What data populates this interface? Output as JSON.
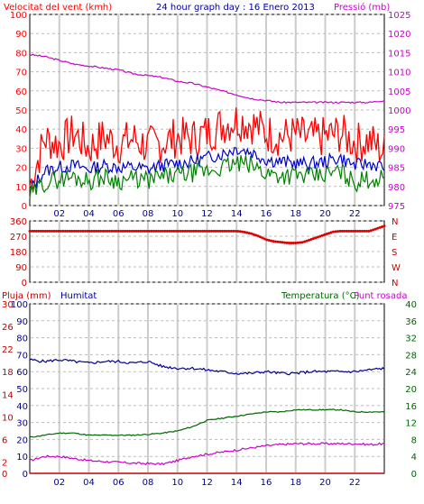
{
  "header": {
    "wind_title": "Velocitat del vent (kmh)",
    "graph_title": "24 hour graph day : 16 Enero 2013",
    "pressure_title": "Pressió (mb)"
  },
  "colors": {
    "wind": "#ff0000",
    "gust": "#ff0000",
    "wind_avg": "#0000cc",
    "wind_low": "#008000",
    "pressure": "#cc00cc",
    "humidity": "#000099",
    "temperature": "#006600",
    "dewpoint": "#cc00cc",
    "rain": "#cc0000",
    "grid_vertical": "#cccccc",
    "grid_horizontal": "#bbbbbb"
  },
  "chart_data": [
    {
      "type": "line",
      "panel": "wind-pressure",
      "title": "24 hour graph day : 16 Enero 2013",
      "xlabel": "",
      "x_ticks": [
        "02",
        "04",
        "06",
        "08",
        "10",
        "12",
        "14",
        "16",
        "18",
        "20",
        "22"
      ],
      "ylabel_left": "Velocitat del vent (kmh)",
      "ylim_left": [
        0,
        100
      ],
      "yticks_left": [
        0,
        10,
        20,
        30,
        40,
        50,
        60,
        70,
        80,
        90,
        100
      ],
      "ylabel_right": "Pressió (mb)",
      "ylim_right": [
        975,
        1025
      ],
      "yticks_right": [
        975,
        980,
        985,
        990,
        995,
        1000,
        1005,
        1010,
        1015,
        1020,
        1025
      ],
      "grid": true,
      "series": [
        {
          "axis": "left",
          "x": [
            0,
            1,
            2,
            3,
            4,
            5,
            6,
            7,
            8,
            9,
            10,
            11,
            12,
            13,
            14,
            15,
            16,
            17,
            18,
            19,
            20,
            21,
            22,
            23,
            24
          ],
          "values": [
            10,
            35,
            32,
            38,
            30,
            36,
            32,
            35,
            31,
            33,
            36,
            35,
            38,
            42,
            45,
            43,
            38,
            36,
            37,
            35,
            36,
            38,
            33,
            34,
            28
          ]
        },
        {
          "axis": "left",
          "x": [
            0,
            1,
            2,
            3,
            4,
            5,
            6,
            7,
            8,
            9,
            10,
            11,
            12,
            13,
            14,
            15,
            16,
            17,
            18,
            19,
            20,
            21,
            22,
            23,
            24
          ],
          "values": [
            8,
            18,
            20,
            21,
            19,
            21,
            20,
            20,
            19,
            21,
            22,
            23,
            25,
            27,
            30,
            28,
            24,
            23,
            22,
            22,
            23,
            25,
            21,
            22,
            20
          ]
        },
        {
          "axis": "left",
          "x": [
            0,
            1,
            2,
            3,
            4,
            5,
            6,
            7,
            8,
            9,
            10,
            11,
            12,
            13,
            14,
            15,
            16,
            17,
            18,
            19,
            20,
            21,
            22,
            23,
            24
          ],
          "values": [
            5,
            12,
            14,
            15,
            13,
            15,
            13,
            14,
            13,
            15,
            16,
            17,
            18,
            20,
            22,
            21,
            17,
            16,
            16,
            15,
            16,
            18,
            12,
            14,
            14
          ]
        },
        {
          "axis": "right",
          "x": [
            0,
            1,
            2,
            3,
            4,
            5,
            6,
            7,
            8,
            9,
            10,
            11,
            12,
            13,
            14,
            15,
            16,
            17,
            18,
            19,
            20,
            21,
            22,
            23,
            24
          ],
          "values": [
            1014.5,
            1014,
            1013,
            1012,
            1011.5,
            1011,
            1010.5,
            1009.5,
            1009,
            1008.5,
            1007.5,
            1007,
            1006,
            1005,
            1004,
            1003,
            1002.5,
            1002,
            1002,
            1002,
            1002,
            1002,
            1002,
            1002,
            1002.5
          ]
        }
      ]
    },
    {
      "type": "scatter",
      "panel": "wind-direction",
      "ylim": [
        0,
        360
      ],
      "yticks": [
        0,
        90,
        180,
        270,
        360
      ],
      "right_labels": [
        "N",
        "W",
        "S",
        "E",
        "N"
      ],
      "grid": true,
      "series": [
        {
          "x": [
            0,
            1,
            2,
            3,
            4,
            5,
            6,
            7,
            8,
            9,
            10,
            11,
            12,
            13,
            14,
            14.5,
            15,
            15.5,
            16,
            16.5,
            17,
            17.5,
            18,
            18.5,
            19,
            19.5,
            20,
            20.5,
            21,
            22,
            23,
            23.5,
            24
          ],
          "values": [
            300,
            300,
            300,
            300,
            300,
            300,
            300,
            300,
            300,
            300,
            300,
            300,
            300,
            300,
            300,
            295,
            285,
            270,
            250,
            240,
            235,
            230,
            230,
            235,
            250,
            265,
            280,
            295,
            300,
            300,
            300,
            315,
            330
          ]
        }
      ]
    },
    {
      "type": "line",
      "panel": "rain-humidity-temperature",
      "legend": [
        "Pluja (mm)",
        "Humitat",
        "Temperatura (°C)",
        "Punt rosada"
      ],
      "legend_placement": "top",
      "x_ticks": [
        "02",
        "04",
        "06",
        "08",
        "10",
        "12",
        "14",
        "16",
        "18",
        "20",
        "22"
      ],
      "ylim_humidity": [
        0,
        100
      ],
      "yticks_humidity": [
        0,
        10,
        20,
        30,
        40,
        50,
        60,
        70,
        80,
        90,
        100
      ],
      "ylim_rain": [
        0,
        30
      ],
      "yticks_rain": [
        0,
        2,
        6,
        10,
        14,
        18,
        22,
        26,
        30
      ],
      "ylim_temp": [
        0,
        40
      ],
      "yticks_temp": [
        0,
        4,
        8,
        12,
        16,
        20,
        24,
        28,
        32,
        36,
        40
      ],
      "grid": true,
      "series": [
        {
          "name": "Humitat",
          "axis": "humidity",
          "x": [
            0,
            1,
            2,
            3,
            4,
            5,
            6,
            7,
            8,
            9,
            10,
            11,
            12,
            13,
            14,
            15,
            16,
            17,
            18,
            19,
            20,
            21,
            22,
            23,
            24
          ],
          "values": [
            67,
            66,
            67,
            66,
            65,
            66,
            66,
            65,
            66,
            63,
            62,
            62,
            61,
            60,
            59,
            59,
            60,
            59,
            59,
            60,
            60,
            60,
            60,
            61,
            62
          ]
        },
        {
          "name": "Temperatura (°C)",
          "axis": "temp",
          "x": [
            0,
            1,
            2,
            3,
            4,
            5,
            6,
            7,
            8,
            9,
            10,
            11,
            12,
            13,
            14,
            15,
            16,
            17,
            18,
            19,
            20,
            21,
            22,
            23,
            24
          ],
          "values": [
            8.5,
            9,
            9.5,
            9.5,
            9,
            9,
            9,
            9,
            9.2,
            9.5,
            10,
            11,
            12.5,
            13,
            13.5,
            14,
            14.5,
            14.5,
            15,
            15,
            15,
            15,
            14.5,
            14.5,
            14.5
          ]
        },
        {
          "name": "Punt rosada",
          "axis": "temp",
          "x": [
            0,
            1,
            2,
            3,
            4,
            5,
            6,
            7,
            8,
            9,
            10,
            11,
            12,
            13,
            14,
            15,
            16,
            17,
            18,
            19,
            20,
            21,
            22,
            23,
            24
          ],
          "values": [
            3,
            4,
            4,
            3.5,
            3,
            2.8,
            2.6,
            2.4,
            2.3,
            2.2,
            3,
            4,
            4.5,
            5,
            5.5,
            6,
            6.5,
            6.8,
            7,
            7,
            7,
            7,
            7,
            6.8,
            7
          ]
        },
        {
          "name": "Pluja (mm)",
          "axis": "rain",
          "x": [
            0,
            24
          ],
          "values": [
            0,
            0
          ]
        }
      ]
    }
  ]
}
